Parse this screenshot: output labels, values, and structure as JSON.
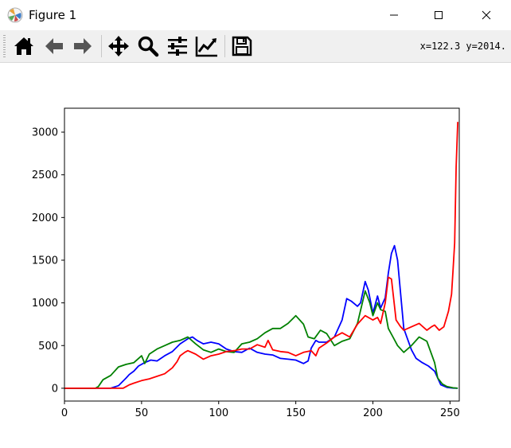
{
  "window": {
    "title": "Figure 1"
  },
  "toolbar": {
    "buttons": [
      "home-icon",
      "back-icon",
      "forward-icon",
      "pan-icon",
      "zoom-icon",
      "configure-subplots-icon",
      "edit-axis-icon",
      "save-icon"
    ],
    "coords_text": "x=122.3 y=2014."
  },
  "colors": {
    "blue": "#0000ff",
    "green": "#008000",
    "red": "#ff0000"
  },
  "chart_data": {
    "type": "line",
    "title": "",
    "xlabel": "",
    "ylabel": "",
    "xlim": [
      0,
      256
    ],
    "ylim": [
      -150,
      3280
    ],
    "xticks": [
      0,
      50,
      100,
      150,
      200,
      250
    ],
    "yticks": [
      0,
      500,
      1000,
      1500,
      2000,
      2500,
      3000
    ],
    "grid": false,
    "series": [
      {
        "color": "#0000ff",
        "x": [
          0,
          20,
          30,
          35,
          40,
          42,
          45,
          48,
          52,
          56,
          60,
          65,
          70,
          75,
          80,
          83,
          86,
          90,
          95,
          100,
          105,
          110,
          115,
          120,
          125,
          130,
          135,
          140,
          145,
          150,
          155,
          158,
          160,
          163,
          165,
          170,
          175,
          180,
          183,
          186,
          190,
          192,
          195,
          197,
          200,
          203,
          205,
          208,
          210,
          212,
          214,
          216,
          218,
          220,
          222,
          225,
          228,
          232,
          236,
          240,
          244,
          248,
          252,
          255
        ],
        "y": [
          0,
          0,
          0,
          30,
          120,
          160,
          200,
          260,
          300,
          330,
          320,
          380,
          430,
          520,
          580,
          600,
          560,
          520,
          540,
          520,
          460,
          430,
          420,
          470,
          420,
          400,
          390,
          350,
          340,
          330,
          290,
          320,
          470,
          560,
          540,
          540,
          600,
          800,
          1050,
          1020,
          960,
          1000,
          1250,
          1150,
          880,
          1080,
          940,
          1060,
          1350,
          1580,
          1670,
          1500,
          1100,
          700,
          600,
          450,
          350,
          300,
          260,
          200,
          40,
          10,
          2,
          0
        ]
      },
      {
        "color": "#008000",
        "x": [
          0,
          20,
          22,
          25,
          30,
          35,
          40,
          45,
          50,
          52,
          55,
          60,
          65,
          70,
          75,
          80,
          85,
          90,
          95,
          100,
          105,
          110,
          115,
          120,
          125,
          130,
          135,
          140,
          145,
          150,
          155,
          158,
          162,
          166,
          170,
          175,
          180,
          185,
          190,
          195,
          198,
          200,
          203,
          205,
          208,
          210,
          213,
          216,
          220,
          225,
          230,
          235,
          240,
          242,
          245,
          248,
          252,
          255
        ],
        "y": [
          0,
          0,
          20,
          100,
          150,
          250,
          280,
          300,
          380,
          290,
          400,
          460,
          500,
          540,
          560,
          600,
          520,
          450,
          420,
          460,
          430,
          420,
          520,
          540,
          580,
          650,
          700,
          700,
          760,
          850,
          750,
          600,
          580,
          680,
          640,
          500,
          550,
          580,
          760,
          1140,
          1000,
          850,
          1000,
          920,
          900,
          700,
          600,
          500,
          420,
          500,
          600,
          550,
          300,
          120,
          50,
          20,
          5,
          0
        ]
      },
      {
        "color": "#ff0000",
        "x": [
          0,
          38,
          40,
          42,
          45,
          50,
          55,
          60,
          65,
          70,
          73,
          75,
          78,
          80,
          85,
          90,
          95,
          100,
          105,
          110,
          115,
          120,
          125,
          130,
          132,
          135,
          140,
          145,
          150,
          155,
          160,
          163,
          165,
          170,
          175,
          180,
          185,
          190,
          195,
          200,
          203,
          205,
          208,
          210,
          212,
          215,
          218,
          220,
          225,
          230,
          235,
          238,
          240,
          243,
          246,
          249,
          251,
          252,
          253,
          254,
          255
        ],
        "y": [
          0,
          0,
          20,
          40,
          60,
          90,
          110,
          140,
          170,
          240,
          310,
          380,
          420,
          440,
          400,
          340,
          380,
          400,
          430,
          440,
          460,
          460,
          510,
          480,
          560,
          450,
          430,
          420,
          380,
          420,
          440,
          380,
          470,
          530,
          600,
          650,
          600,
          750,
          850,
          800,
          830,
          760,
          1000,
          1300,
          1280,
          800,
          720,
          680,
          720,
          760,
          680,
          720,
          740,
          680,
          720,
          900,
          1100,
          1400,
          1700,
          2600,
          3120
        ]
      }
    ]
  }
}
